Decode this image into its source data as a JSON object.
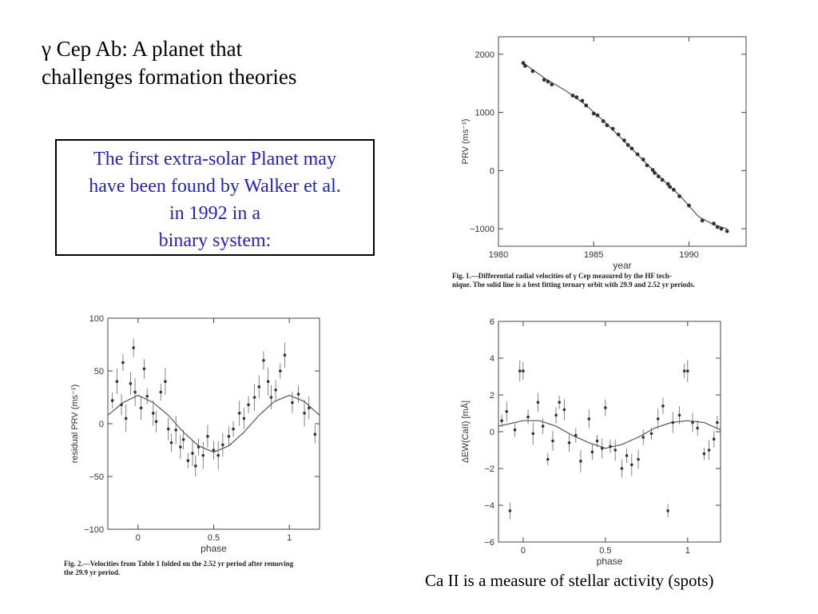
{
  "slide": {
    "title_line1": "γ Cep Ab: A planet that",
    "title_line2": "challenges formation theories",
    "callout_lines": [
      "The first extra-solar Planet may",
      "have been found by Walker et al.",
      "in 1992  in a",
      "binary system:"
    ],
    "caption": "Ca II is a measure of stellar activity (spots)"
  },
  "figure_captions": {
    "fig1_line1": "Fig. 1.—Differential radial velocities of γ Cep measured by the HF tech-",
    "fig1_line2": "nique. The solid line is a best fitting ternary orbit with 29.9 and 2.52 yr periods.",
    "fig2_line1": "Fig. 2.—Velocities from Table 1 folded on the 2.52 yr period after removing",
    "fig2_line2": "the 29.9 yr period."
  },
  "chart_data": [
    {
      "type": "scatter",
      "xlabel": "year",
      "ylabel": "PRV (ms⁻¹)",
      "xlim": [
        1980,
        1993
      ],
      "ylim": [
        -1300,
        2300
      ],
      "xticks": [
        "1980",
        "1985",
        "1990"
      ],
      "yticks": [
        "2000",
        "1000",
        "0",
        "−1000"
      ],
      "x": [
        1981.3,
        1981.4,
        1981.8,
        1982.4,
        1982.6,
        1982.8,
        1983.9,
        1984.1,
        1984.4,
        1984.6,
        1985.0,
        1985.2,
        1985.5,
        1985.7,
        1986.0,
        1986.3,
        1986.6,
        1986.8,
        1987.0,
        1987.3,
        1987.6,
        1987.8,
        1988.1,
        1988.2,
        1988.4,
        1988.6,
        1988.9,
        1989.0,
        1989.2,
        1989.5,
        1990.0,
        1990.7,
        1991.3,
        1991.5,
        1991.7,
        1992.0
      ],
      "y": [
        1850,
        1800,
        1710,
        1560,
        1530,
        1480,
        1290,
        1260,
        1200,
        1120,
        980,
        950,
        850,
        780,
        720,
        620,
        520,
        440,
        380,
        280,
        190,
        90,
        10,
        -40,
        -100,
        -160,
        -230,
        -280,
        -330,
        -440,
        -600,
        -860,
        -910,
        -970,
        -1000,
        -1040
      ],
      "fit_x": [
        1981.3,
        1982.5,
        1983.5,
        1984.5,
        1985.5,
        1986.5,
        1987.5,
        1988.5,
        1989.5,
        1990.5,
        1991.3,
        1992.0
      ],
      "fit_y": [
        1850,
        1570,
        1380,
        1150,
        860,
        540,
        210,
        -120,
        -420,
        -790,
        -930,
        -1000
      ]
    },
    {
      "type": "scatter",
      "xlabel": "phase",
      "ylabel": "residual PRV (ms⁻¹)",
      "xlim": [
        -0.2,
        1.2
      ],
      "ylim": [
        -100,
        100
      ],
      "xticks": [
        "0",
        "0.5",
        "1"
      ],
      "yticks": [
        "100",
        "50",
        "0",
        "−50",
        "−100"
      ],
      "x": [
        -0.17,
        -0.14,
        -0.11,
        -0.1,
        -0.08,
        -0.05,
        -0.03,
        -0.02,
        0.02,
        0.04,
        0.06,
        0.1,
        0.12,
        0.15,
        0.18,
        0.2,
        0.22,
        0.25,
        0.28,
        0.3,
        0.33,
        0.36,
        0.38,
        0.4,
        0.43,
        0.46,
        0.5,
        0.53,
        0.56,
        0.6,
        0.63,
        0.67,
        0.7,
        0.73,
        0.77,
        0.8,
        0.83,
        0.86,
        0.88,
        0.91,
        0.94,
        0.97,
        1.02,
        1.06,
        1.1,
        1.13,
        1.17
      ],
      "y": [
        22,
        40,
        18,
        58,
        5,
        38,
        72,
        30,
        15,
        52,
        26,
        10,
        2,
        30,
        40,
        -5,
        -18,
        -6,
        -22,
        -15,
        -35,
        -28,
        -40,
        -22,
        -30,
        -12,
        -25,
        -30,
        -20,
        -12,
        -5,
        10,
        5,
        18,
        25,
        35,
        60,
        40,
        25,
        32,
        50,
        65,
        20,
        28,
        10,
        15,
        -10
      ],
      "fit_x": [
        -0.2,
        -0.1,
        0.0,
        0.1,
        0.2,
        0.3,
        0.4,
        0.5,
        0.6,
        0.7,
        0.8,
        0.9,
        1.0,
        1.1,
        1.2
      ],
      "fit_y": [
        8,
        20,
        27,
        20,
        8,
        -8,
        -21,
        -27,
        -21,
        -8,
        8,
        21,
        27,
        21,
        8
      ]
    },
    {
      "type": "scatter",
      "xlabel": "phase",
      "ylabel": "ΔEW(CaII)  [mÅ]",
      "xlim": [
        -0.15,
        1.2
      ],
      "ylim": [
        -6,
        6
      ],
      "xticks": [
        "0",
        "0.5",
        "1"
      ],
      "yticks": [
        "6",
        "4",
        "2",
        "0",
        "−2",
        "−4",
        "−6"
      ],
      "x": [
        -0.13,
        -0.1,
        -0.08,
        -0.05,
        -0.02,
        0.0,
        0.03,
        0.06,
        0.09,
        0.12,
        0.15,
        0.18,
        0.2,
        0.22,
        0.25,
        0.28,
        0.32,
        0.35,
        0.4,
        0.42,
        0.45,
        0.48,
        0.5,
        0.53,
        0.56,
        0.6,
        0.63,
        0.66,
        0.7,
        0.73,
        0.78,
        0.82,
        0.85,
        0.88,
        0.91,
        0.95,
        0.98,
        1.0,
        1.03,
        1.06,
        1.1,
        1.13,
        1.16,
        1.18
      ],
      "y": [
        0.6,
        1.1,
        -4.3,
        0.1,
        3.3,
        3.3,
        0.8,
        -0.1,
        1.6,
        0.3,
        -1.5,
        -0.5,
        0.9,
        1.6,
        1.2,
        -0.6,
        -0.2,
        -1.6,
        0.7,
        -1.1,
        -0.5,
        -0.9,
        1.3,
        -0.8,
        -1.0,
        -2.0,
        -1.3,
        -1.8,
        -1.5,
        -0.3,
        -0.1,
        0.7,
        1.4,
        -4.3,
        0.5,
        0.9,
        3.3,
        3.3,
        0.5,
        0.2,
        -1.2,
        -1.0,
        -0.4,
        0.5
      ],
      "fit_x": [
        -0.15,
        0.0,
        0.1,
        0.2,
        0.3,
        0.4,
        0.5,
        0.6,
        0.7,
        0.8,
        0.9,
        1.0,
        1.1,
        1.2
      ],
      "fit_y": [
        0.3,
        0.6,
        0.6,
        0.3,
        -0.2,
        -0.6,
        -0.9,
        -0.7,
        -0.3,
        0.2,
        0.5,
        0.6,
        0.5,
        0.1
      ]
    }
  ]
}
